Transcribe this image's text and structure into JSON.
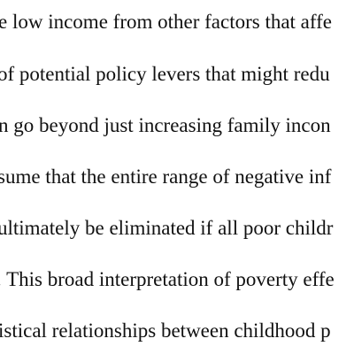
{
  "document": {
    "lines": [
      "e low income from other factors that affe",
      "of potential policy levers that might redu",
      "n go beyond just increasing family incon",
      "sume that the entire range of negative inf",
      "ultimately be eliminated if all poor childr",
      ". This broad interpretation of poverty effe",
      "istical relationships between childhood p"
    ]
  }
}
